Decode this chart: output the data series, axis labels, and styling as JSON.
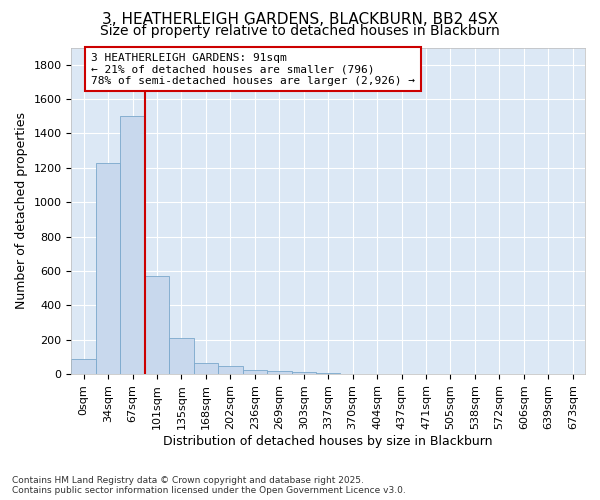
{
  "title": "3, HEATHERLEIGH GARDENS, BLACKBURN, BB2 4SX",
  "subtitle": "Size of property relative to detached houses in Blackburn",
  "xlabel": "Distribution of detached houses by size in Blackburn",
  "ylabel": "Number of detached properties",
  "bar_values": [
    90,
    1230,
    1500,
    570,
    210,
    65,
    45,
    25,
    20,
    15,
    5,
    0,
    0,
    0,
    0,
    0,
    0,
    0,
    0,
    0,
    0
  ],
  "bar_color": "#c8d8ed",
  "bar_edge_color": "#7aa8cc",
  "categories": [
    "0sqm",
    "34sqm",
    "67sqm",
    "101sqm",
    "135sqm",
    "168sqm",
    "202sqm",
    "236sqm",
    "269sqm",
    "303sqm",
    "337sqm",
    "370sqm",
    "404sqm",
    "437sqm",
    "471sqm",
    "505sqm",
    "538sqm",
    "572sqm",
    "606sqm",
    "639sqm",
    "673sqm"
  ],
  "ylim": [
    0,
    1900
  ],
  "yticks": [
    0,
    200,
    400,
    600,
    800,
    1000,
    1200,
    1400,
    1600,
    1800
  ],
  "property_line_x": 2.5,
  "annotation_text": "3 HEATHERLEIGH GARDENS: 91sqm\n← 21% of detached houses are smaller (796)\n78% of semi-detached houses are larger (2,926) →",
  "annotation_box_color": "#ffffff",
  "annotation_box_edge": "#cc0000",
  "line_color": "#cc0000",
  "fig_background_color": "#ffffff",
  "axes_background_color": "#dce8f5",
  "footer_line1": "Contains HM Land Registry data © Crown copyright and database right 2025.",
  "footer_line2": "Contains public sector information licensed under the Open Government Licence v3.0.",
  "grid_color": "#ffffff",
  "title_fontsize": 11,
  "subtitle_fontsize": 10,
  "axis_label_fontsize": 9,
  "tick_fontsize": 8,
  "ylabel_fontsize": 9
}
